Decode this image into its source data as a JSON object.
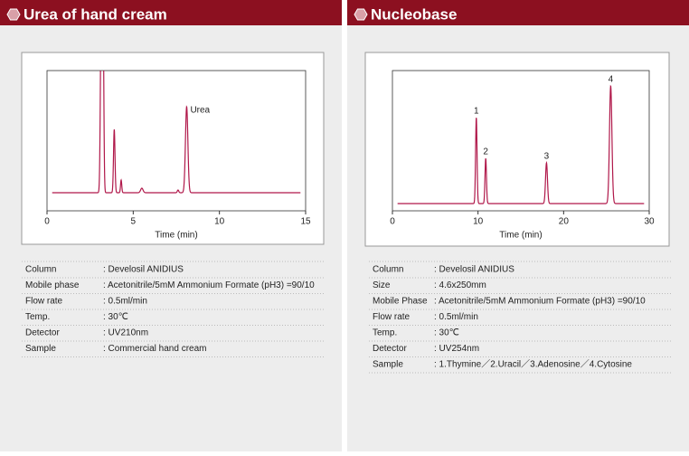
{
  "panels": [
    {
      "title": "Urea of hand cream",
      "chart": {
        "xlabel": "Time (min)",
        "xlim": [
          0,
          15
        ],
        "xticks": [
          0,
          5,
          10,
          15
        ],
        "peaks": [
          {
            "label": "Urea",
            "time": 8.1
          }
        ]
      },
      "conditions": [
        [
          "Column",
          ": Develosil ANIDIUS"
        ],
        [
          "Mobile phase",
          ": Acetonitrile/5mM Ammonium Formate (pH3) =90/10"
        ],
        [
          "Flow rate",
          ": 0.5ml/min"
        ],
        [
          "Temp.",
          ": 30℃"
        ],
        [
          "Detector",
          ": UV210nm"
        ],
        [
          "Sample",
          ": Commercial hand cream"
        ]
      ]
    },
    {
      "title": "Nucleobase",
      "chart": {
        "xlabel": "Time (min)",
        "xlim": [
          0,
          30
        ],
        "xticks": [
          0,
          10,
          20,
          30
        ],
        "peaks": [
          {
            "label": "1",
            "time": 9.8
          },
          {
            "label": "2",
            "time": 10.9
          },
          {
            "label": "3",
            "time": 18
          },
          {
            "label": "4",
            "time": 25.5
          }
        ]
      },
      "conditions": [
        [
          "Column",
          ": Develosil ANIDIUS"
        ],
        [
          "Size",
          ": 4.6x250mm"
        ],
        [
          "Mobile Phase",
          ": Acetonitrile/5mM Ammonium Formate (pH3) =90/10"
        ],
        [
          "Flow rate",
          ": 0.5ml/min"
        ],
        [
          "Temp.",
          ": 30℃"
        ],
        [
          "Detector",
          ": UV254nm"
        ],
        [
          "Sample",
          ": 1.Thymine／2.Uracil／3.Adenosine／4.Cytosine"
        ]
      ]
    }
  ]
}
